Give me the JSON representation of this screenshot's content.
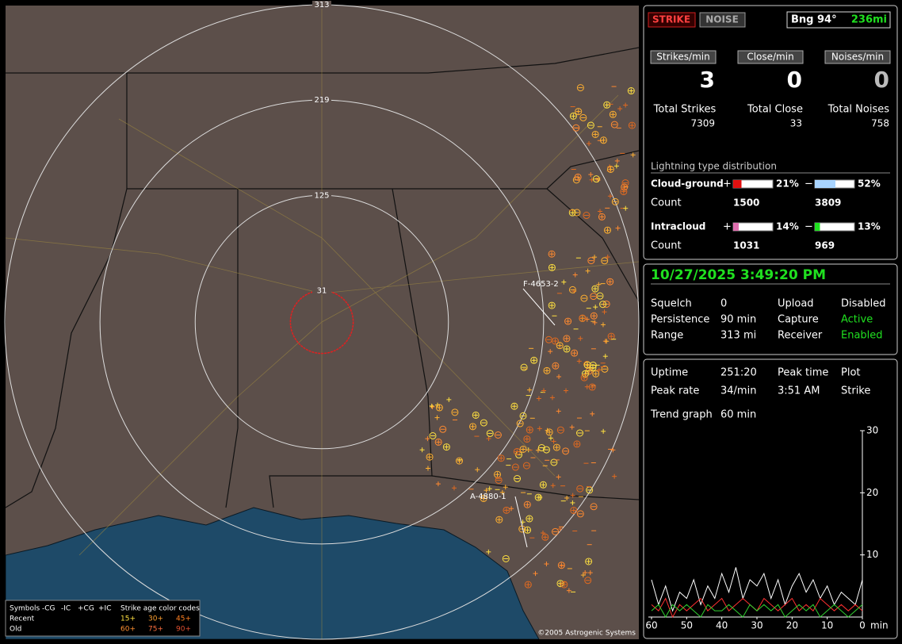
{
  "map": {
    "rings": [
      31,
      125,
      219,
      313
    ],
    "storm_labels": [
      "F-4653-2",
      "A-4880-1"
    ],
    "legend": {
      "symbols": "Symbols",
      "types": [
        "-CG",
        "-IC",
        "+CG",
        "+IC"
      ],
      "age_title": "Strike age color codes",
      "rows": [
        "Recent",
        "Old"
      ],
      "ages": [
        "15+",
        "30+",
        "45+",
        "60+",
        "75+",
        "90+"
      ]
    },
    "copyright": "©2005 Astrogenic Systems"
  },
  "status": {
    "strike": "STRIKE",
    "noise": "NOISE",
    "bearing": "Bng 94°",
    "distance": "236mi"
  },
  "rates": [
    {
      "label": "Strikes/min",
      "value": 3
    },
    {
      "label": "Close/min",
      "value": 0
    },
    {
      "label": "Noises/min",
      "value": 0
    }
  ],
  "totals": [
    {
      "label": "Total Strikes",
      "value": 7309
    },
    {
      "label": "Total Close",
      "value": 33
    },
    {
      "label": "Total Noises",
      "value": 758
    }
  ],
  "distribution": {
    "title": "Lightning type distribution",
    "count_label": "Count",
    "rows": [
      {
        "name": "Cloud-ground",
        "plus": {
          "sign": "+",
          "percent": {
            "value": 21,
            "label": "21%"
          },
          "count": 1500,
          "color": "#e01010"
        },
        "minus": {
          "sign": "−",
          "percent": {
            "value": 52,
            "label": "52%"
          },
          "count": 3809,
          "color": "#a8d4ff"
        }
      },
      {
        "name": "Intracloud",
        "plus": {
          "sign": "+",
          "percent": {
            "value": 14,
            "label": "14%"
          },
          "count": 1031,
          "color": "#e070b0"
        },
        "minus": {
          "sign": "−",
          "percent": {
            "value": 13,
            "label": "13%"
          },
          "count": 969,
          "color": "#20e020"
        }
      }
    ]
  },
  "clock": "10/27/2025 3:49:20 PM",
  "settings": [
    [
      "Squelch",
      "0",
      "Upload",
      "Disabled"
    ],
    [
      "Persistence",
      "90 min",
      "Capture",
      "Active"
    ],
    [
      "Range",
      "313 mi",
      "Receiver",
      "Enabled"
    ]
  ],
  "stats": [
    [
      "Uptime",
      "251:20",
      "Peak time",
      "Plot"
    ],
    [
      "Peak rate",
      "34/min",
      "3:51 AM",
      "Strike"
    ]
  ],
  "trend_label": "Trend graph",
  "trend_span": "60 min",
  "trend": {
    "ylim": [
      0,
      30
    ],
    "yticks": [
      10,
      20,
      30
    ],
    "xlim": [
      60,
      0
    ],
    "xticks": [
      60,
      50,
      40,
      30,
      20,
      10,
      0
    ],
    "x_unit": "min",
    "x": [
      60,
      58,
      56,
      54,
      52,
      50,
      48,
      46,
      44,
      42,
      40,
      38,
      36,
      34,
      32,
      30,
      28,
      26,
      24,
      22,
      20,
      18,
      16,
      14,
      12,
      10,
      8,
      6,
      4,
      2,
      0
    ],
    "series": [
      {
        "color": "#ffffff",
        "values": [
          6,
          2,
          5,
          1,
          4,
          3,
          6,
          2,
          5,
          3,
          7,
          4,
          8,
          3,
          6,
          5,
          7,
          3,
          6,
          2,
          5,
          7,
          4,
          6,
          3,
          5,
          2,
          4,
          3,
          2,
          6
        ]
      },
      {
        "color": "#ff3030",
        "values": [
          2,
          1,
          3,
          0,
          2,
          1,
          2,
          3,
          1,
          2,
          3,
          1,
          2,
          3,
          2,
          1,
          3,
          2,
          1,
          2,
          3,
          1,
          2,
          1,
          3,
          2,
          1,
          2,
          1,
          2,
          1
        ]
      },
      {
        "color": "#30d030",
        "values": [
          1,
          2,
          0,
          2,
          1,
          2,
          1,
          0,
          2,
          1,
          1,
          2,
          1,
          0,
          2,
          1,
          2,
          1,
          2,
          0,
          1,
          2,
          1,
          2,
          0,
          1,
          2,
          1,
          0,
          1,
          2
        ]
      }
    ]
  }
}
